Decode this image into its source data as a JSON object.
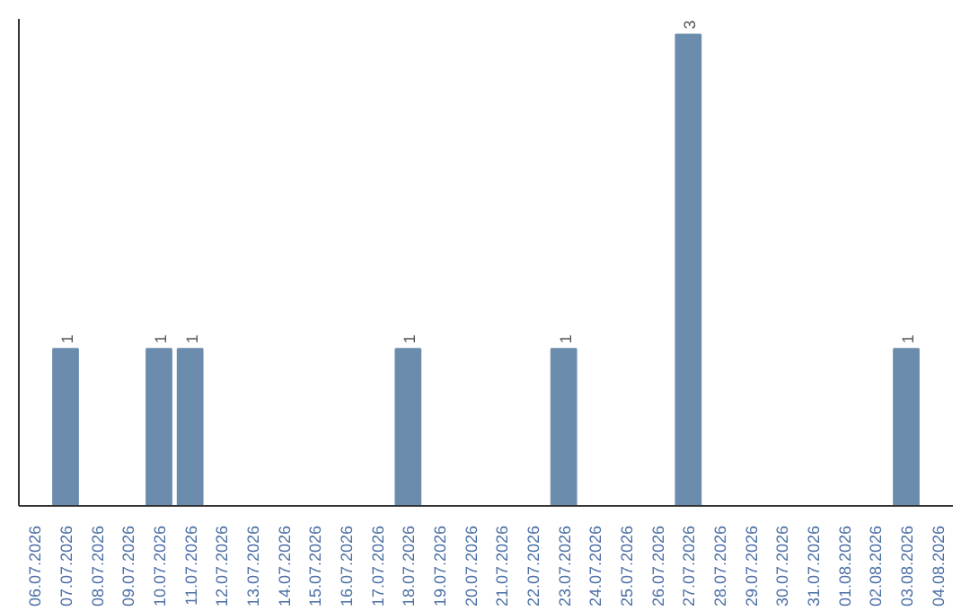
{
  "chart_data": {
    "type": "bar",
    "categories": [
      "06.07.2026",
      "07.07.2026",
      "08.07.2026",
      "09.07.2026",
      "10.07.2026",
      "11.07.2026",
      "12.07.2026",
      "13.07.2026",
      "14.07.2026",
      "15.07.2026",
      "16.07.2026",
      "17.07.2026",
      "18.07.2026",
      "19.07.2026",
      "20.07.2026",
      "21.07.2026",
      "22.07.2026",
      "23.07.2026",
      "24.07.2026",
      "25.07.2026",
      "26.07.2026",
      "27.07.2026",
      "28.07.2026",
      "29.07.2026",
      "30.07.2026",
      "31.07.2026",
      "01.08.2026",
      "02.08.2026",
      "03.08.2026",
      "04.08.2026"
    ],
    "values": [
      0,
      1,
      0,
      0,
      1,
      1,
      0,
      0,
      0,
      0,
      0,
      0,
      1,
      0,
      0,
      0,
      0,
      1,
      0,
      0,
      0,
      3,
      0,
      0,
      0,
      0,
      0,
      0,
      1,
      0
    ],
    "value_labels": [
      null,
      "1",
      null,
      null,
      "1",
      "1",
      null,
      null,
      null,
      null,
      null,
      null,
      "1",
      null,
      null,
      null,
      null,
      "1",
      null,
      null,
      null,
      "3",
      null,
      null,
      null,
      null,
      null,
      null,
      "1",
      null
    ],
    "color": "#6b8cac",
    "ylim": [
      0,
      3.1
    ],
    "grid": false
  }
}
